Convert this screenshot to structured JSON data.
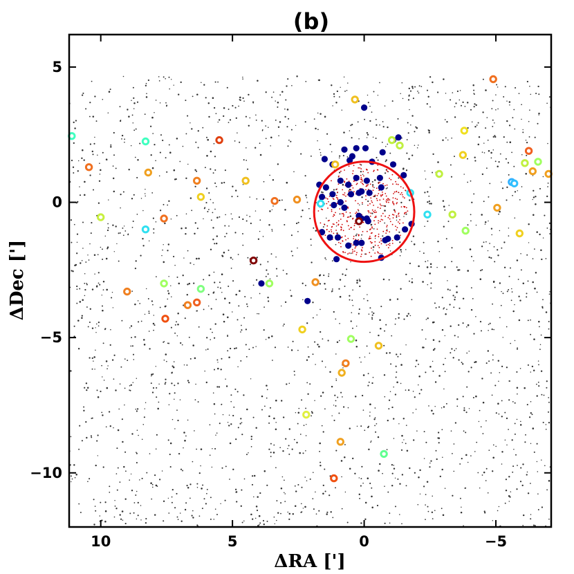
{
  "chart_data": {
    "type": "scatter",
    "title": "(b)",
    "xlabel": "ΔRA [']",
    "ylabel": "ΔDec [']",
    "xlim": [
      11.2,
      -7.1
    ],
    "ylim": [
      -12.0,
      6.2
    ],
    "xticks": [
      10,
      5,
      0,
      -5
    ],
    "xtick_labels": [
      "10",
      "5",
      "0",
      "−5"
    ],
    "yticks": [
      5,
      0,
      -5,
      -10
    ],
    "ytick_labels": [
      "5",
      "0",
      "−5",
      "−10"
    ],
    "grid": false,
    "legend": "none",
    "colors": {
      "field": "#333333",
      "members": "#cc0000",
      "blue_stars": "#00008b",
      "circle": "#ee1111",
      "axes": "#000000"
    },
    "field_stars": {
      "description": "uniformly distributed background field stars (tiny black dots)",
      "x_range": [
        -7.1,
        11.2
      ],
      "y_range": [
        -12.0,
        4.7
      ],
      "approx_count": 2200
    },
    "cluster_circle": {
      "center": [
        0.0,
        -0.35
      ],
      "radius": 1.9
    },
    "cluster_members": {
      "description": "dense small red dots inside the cluster circle",
      "center": [
        0.0,
        -0.3
      ],
      "radius": 1.75,
      "approx_count": 420
    },
    "blue_stars": [
      [
        1.5,
        1.6
      ],
      [
        0.75,
        1.95
      ],
      [
        0.3,
        2.0
      ],
      [
        -0.05,
        2.0
      ],
      [
        -0.7,
        1.85
      ],
      [
        -1.3,
        2.4
      ],
      [
        -1.1,
        2.3
      ],
      [
        1.2,
        1.4
      ],
      [
        0.55,
        1.55
      ],
      [
        -0.3,
        1.5
      ],
      [
        -1.1,
        1.4
      ],
      [
        -1.5,
        1.0
      ],
      [
        1.7,
        0.65
      ],
      [
        1.45,
        0.55
      ],
      [
        0.9,
        0.8
      ],
      [
        0.6,
        0.65
      ],
      [
        0.3,
        0.9
      ],
      [
        -0.1,
        0.8
      ],
      [
        -0.6,
        0.9
      ],
      [
        1.2,
        0.3
      ],
      [
        0.5,
        0.3
      ],
      [
        0.2,
        0.35
      ],
      [
        0.1,
        0.4
      ],
      [
        -0.2,
        0.35
      ],
      [
        -0.65,
        0.55
      ],
      [
        1.15,
        -0.1
      ],
      [
        0.9,
        0.0
      ],
      [
        0.75,
        -0.2
      ],
      [
        0.2,
        -0.5
      ],
      [
        0.1,
        -0.6
      ],
      [
        -0.1,
        -0.6
      ],
      [
        -0.15,
        -0.7
      ],
      [
        1.6,
        -1.1
      ],
      [
        1.3,
        -1.3
      ],
      [
        1.0,
        -1.3
      ],
      [
        0.6,
        -1.6
      ],
      [
        0.3,
        -1.5
      ],
      [
        -0.8,
        -1.4
      ],
      [
        -0.9,
        -1.35
      ],
      [
        -1.25,
        -1.3
      ],
      [
        -1.55,
        -1.0
      ],
      [
        1.05,
        -2.1
      ],
      [
        0.1,
        -1.5
      ],
      [
        -0.65,
        -2.05
      ],
      [
        0.45,
        1.7
      ],
      [
        0.0,
        3.5
      ],
      [
        3.9,
        -3.0
      ],
      [
        2.15,
        -3.65
      ],
      [
        1.6,
        0.2
      ],
      [
        -1.8,
        -0.8
      ]
    ],
    "ring_stars": [
      {
        "x": 11.1,
        "y": 2.45,
        "c": "#40ffc0"
      },
      {
        "x": 10.45,
        "y": 1.3,
        "c": "#f07020"
      },
      {
        "x": 10.0,
        "y": -0.55,
        "c": "#c8f040"
      },
      {
        "x": 8.3,
        "y": 2.25,
        "c": "#40ffc0"
      },
      {
        "x": 8.2,
        "y": 1.1,
        "c": "#f0a020"
      },
      {
        "x": 8.3,
        "y": -1.0,
        "c": "#30e0f0"
      },
      {
        "x": 7.6,
        "y": -0.6,
        "c": "#f07020"
      },
      {
        "x": 7.6,
        "y": -3.0,
        "c": "#a0ff60"
      },
      {
        "x": 7.55,
        "y": -4.3,
        "c": "#f05010"
      },
      {
        "x": 9.0,
        "y": -3.3,
        "c": "#f08020"
      },
      {
        "x": 6.35,
        "y": 0.8,
        "c": "#f08020"
      },
      {
        "x": 6.2,
        "y": 0.2,
        "c": "#f0d020"
      },
      {
        "x": 6.7,
        "y": -3.8,
        "c": "#f08020"
      },
      {
        "x": 6.35,
        "y": -3.7,
        "c": "#f06020"
      },
      {
        "x": 6.2,
        "y": -3.2,
        "c": "#80ff80"
      },
      {
        "x": 5.5,
        "y": 2.3,
        "c": "#e04010"
      },
      {
        "x": 4.5,
        "y": 0.8,
        "c": "#f0c020"
      },
      {
        "x": 4.2,
        "y": -2.15,
        "c": "#800000"
      },
      {
        "x": 3.6,
        "y": -3.0,
        "c": "#a0ff60"
      },
      {
        "x": 3.4,
        "y": 0.05,
        "c": "#f07020"
      },
      {
        "x": 2.55,
        "y": 0.1,
        "c": "#f09020"
      },
      {
        "x": 1.85,
        "y": -2.95,
        "c": "#f09020"
      },
      {
        "x": 1.65,
        "y": -0.05,
        "c": "#30e0f0"
      },
      {
        "x": 1.1,
        "y": 1.4,
        "c": "#f0c020"
      },
      {
        "x": 0.35,
        "y": 3.8,
        "c": "#f0c020"
      },
      {
        "x": 0.2,
        "y": -0.7,
        "c": "#800000"
      },
      {
        "x": -1.05,
        "y": 2.3,
        "c": "#c0f040"
      },
      {
        "x": -1.35,
        "y": 2.1,
        "c": "#c0f040"
      },
      {
        "x": -1.75,
        "y": 0.35,
        "c": "#30e0f0"
      },
      {
        "x": -2.4,
        "y": -0.45,
        "c": "#30e0f0"
      },
      {
        "x": -2.85,
        "y": 1.05,
        "c": "#c0f040"
      },
      {
        "x": -3.35,
        "y": -0.45,
        "c": "#c0f040"
      },
      {
        "x": -3.75,
        "y": 1.75,
        "c": "#f0d020"
      },
      {
        "x": -3.8,
        "y": 2.65,
        "c": "#f0e020"
      },
      {
        "x": -3.85,
        "y": -1.05,
        "c": "#a0ff60"
      },
      {
        "x": -4.9,
        "y": 4.55,
        "c": "#f07020"
      },
      {
        "x": -5.05,
        "y": -0.2,
        "c": "#f0a020"
      },
      {
        "x": -5.6,
        "y": 0.75,
        "c": "#30b0ff"
      },
      {
        "x": -5.7,
        "y": 0.7,
        "c": "#30c0ff"
      },
      {
        "x": -5.9,
        "y": -1.15,
        "c": "#f0d020"
      },
      {
        "x": -6.1,
        "y": 1.45,
        "c": "#c0f040"
      },
      {
        "x": -6.25,
        "y": 1.9,
        "c": "#f06020"
      },
      {
        "x": -6.4,
        "y": 1.15,
        "c": "#f0a020"
      },
      {
        "x": -6.6,
        "y": 1.5,
        "c": "#a0ff60"
      },
      {
        "x": -7.0,
        "y": 1.05,
        "c": "#f0a020"
      },
      {
        "x": 2.35,
        "y": -4.7,
        "c": "#f0d020"
      },
      {
        "x": 0.5,
        "y": -5.05,
        "c": "#a0ff60"
      },
      {
        "x": -0.55,
        "y": -5.3,
        "c": "#f0c020"
      },
      {
        "x": 0.7,
        "y": -5.95,
        "c": "#f08020"
      },
      {
        "x": 0.85,
        "y": -6.3,
        "c": "#f0b020"
      },
      {
        "x": 2.2,
        "y": -7.85,
        "c": "#e0f040"
      },
      {
        "x": 0.9,
        "y": -8.85,
        "c": "#f0a020"
      },
      {
        "x": -0.75,
        "y": -9.3,
        "c": "#60ff90"
      },
      {
        "x": 1.15,
        "y": -10.2,
        "c": "#f05010"
      }
    ]
  }
}
